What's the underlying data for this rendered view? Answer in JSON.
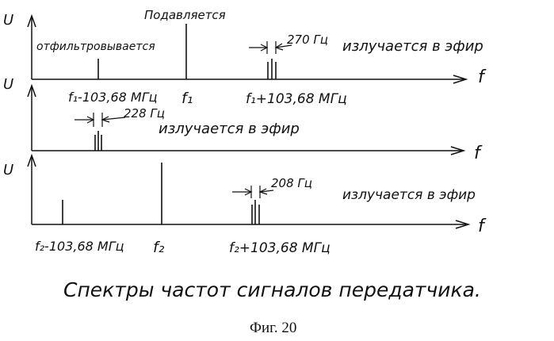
{
  "panel1": {
    "axis_y_label": "U",
    "axis_x_label": "f",
    "label_suppressed": "Подавляется",
    "label_filtered": "отфильтровывается",
    "label_bandwidth": "270 Гц",
    "label_emitted": "излучается в эфир",
    "tick_left": "f₁-103,68 МГц",
    "tick_center": "f₁",
    "tick_right": "f₁+103,68 МГц"
  },
  "panel2": {
    "axis_y_label": "U",
    "axis_x_label": "f",
    "label_bandwidth": "228 Гц",
    "label_emitted": "излучается в эфир"
  },
  "panel3": {
    "axis_y_label": "U",
    "axis_x_label": "f",
    "label_bandwidth": "208 Гц",
    "label_emitted": "излучается в эфир",
    "tick_left": "f₂-103,68 МГц",
    "tick_center": "f₂",
    "tick_right": "f₂+103,68 МГц"
  },
  "caption": "Спектры частот сигналов передатчика.",
  "figure_label": "Фиг. 20"
}
